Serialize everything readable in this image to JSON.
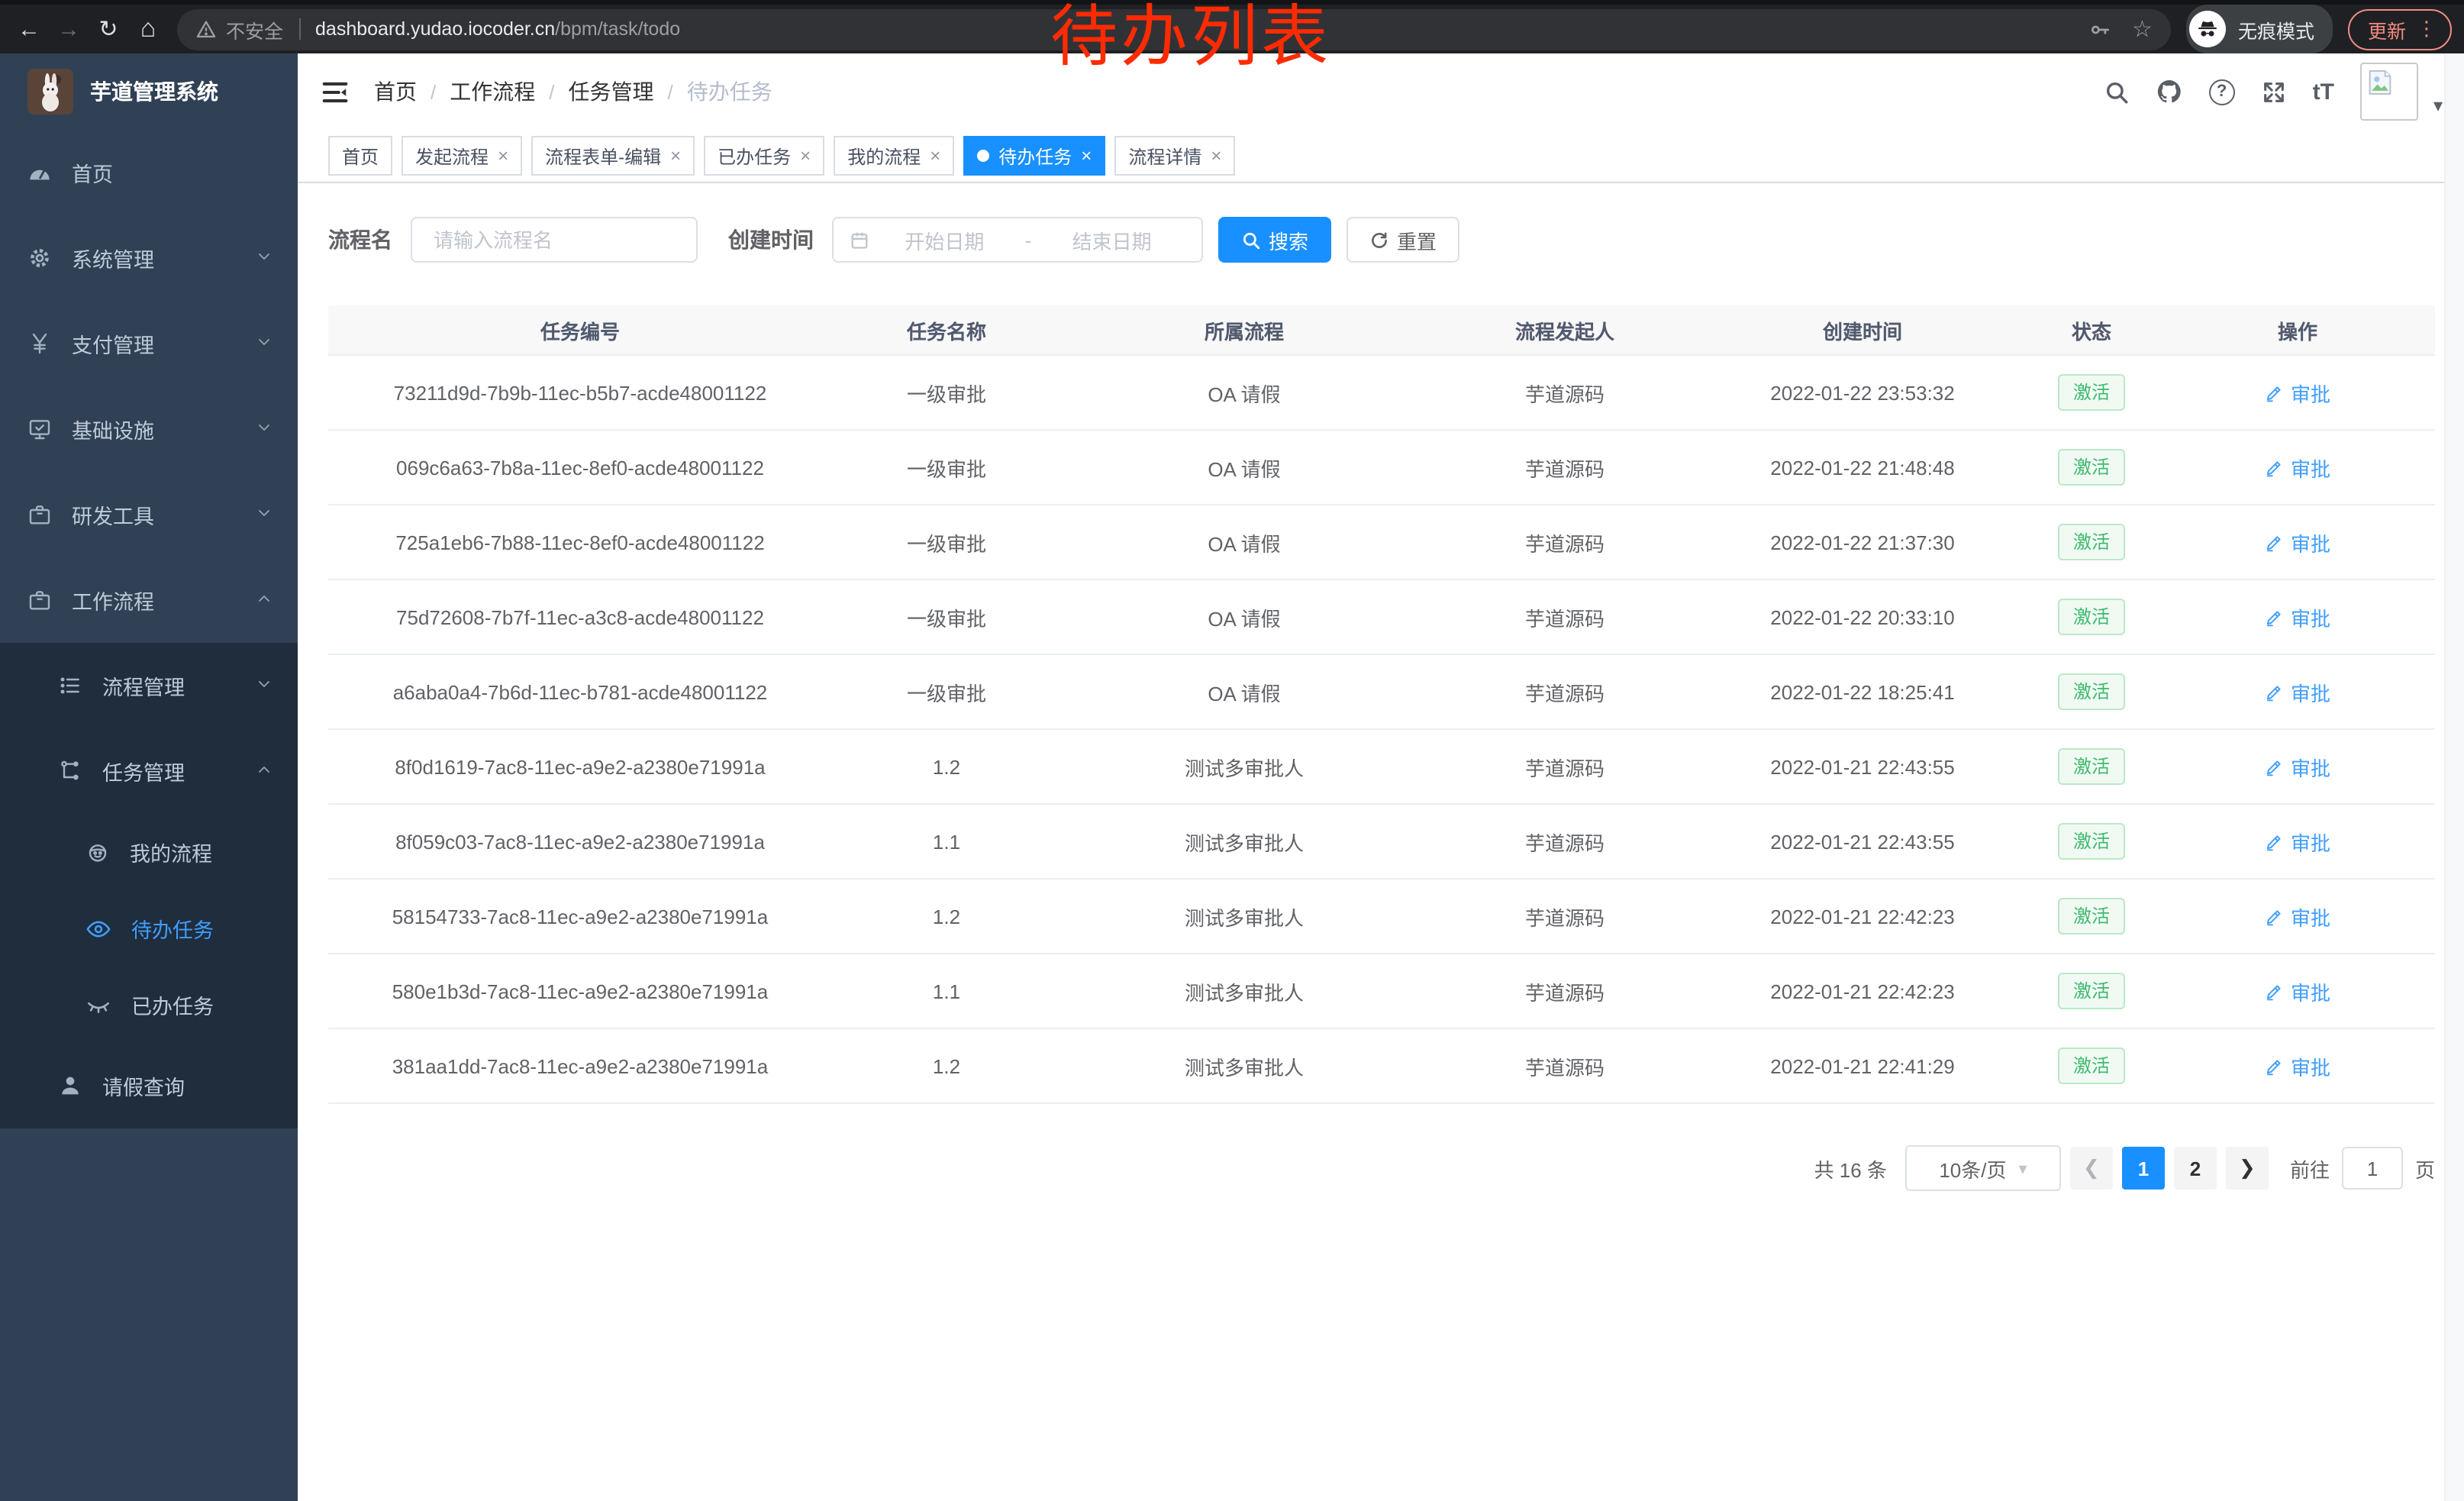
{
  "annotation": {
    "text": "待办列表",
    "color": "#fe2b01"
  },
  "browser": {
    "security_text": "不安全",
    "url_host": "dashboard.yudao.iocoder.cn",
    "url_path": "/bpm/task/todo",
    "incognito_label": "无痕模式",
    "update_label": "更新"
  },
  "sidebar": {
    "app_title": "芋道管理系统",
    "menu": [
      {
        "label": "首页",
        "icon": "dashboard-icon",
        "level": 1,
        "chevron": null,
        "active": false,
        "sub": false
      },
      {
        "label": "系统管理",
        "icon": "gear-icon",
        "level": 1,
        "chevron": "down",
        "active": false,
        "sub": false
      },
      {
        "label": "支付管理",
        "icon": "yen-icon",
        "level": 1,
        "chevron": "down",
        "active": false,
        "sub": false
      },
      {
        "label": "基础设施",
        "icon": "monitor-icon",
        "level": 1,
        "chevron": "down",
        "active": false,
        "sub": false
      },
      {
        "label": "研发工具",
        "icon": "briefcase-icon",
        "level": 1,
        "chevron": "down",
        "active": false,
        "sub": false
      },
      {
        "label": "工作流程",
        "icon": "briefcase-icon",
        "level": 1,
        "chevron": "up",
        "active": false,
        "sub": false
      },
      {
        "label": "流程管理",
        "icon": "list-icon",
        "level": 2,
        "chevron": "down",
        "active": false,
        "sub": true
      },
      {
        "label": "任务管理",
        "icon": "flow-icon",
        "level": 2,
        "chevron": "up",
        "active": false,
        "sub": true
      },
      {
        "label": "我的流程",
        "icon": "robot-icon",
        "level": 3,
        "chevron": null,
        "active": false,
        "sub": true
      },
      {
        "label": "待办任务",
        "icon": "eye-icon",
        "level": 3,
        "chevron": null,
        "active": true,
        "sub": true
      },
      {
        "label": "已办任务",
        "icon": "eye-closed-icon",
        "level": 3,
        "chevron": null,
        "active": false,
        "sub": true
      },
      {
        "label": "请假查询",
        "icon": "user-icon",
        "level": 2,
        "chevron": null,
        "active": false,
        "sub": true
      }
    ]
  },
  "header": {
    "breadcrumb": [
      "首页",
      "工作流程",
      "任务管理",
      "待办任务"
    ]
  },
  "tabs": [
    {
      "label": "首页",
      "closable": false,
      "active": false
    },
    {
      "label": "发起流程",
      "closable": true,
      "active": false
    },
    {
      "label": "流程表单-编辑",
      "closable": true,
      "active": false
    },
    {
      "label": "已办任务",
      "closable": true,
      "active": false
    },
    {
      "label": "我的流程",
      "closable": true,
      "active": false
    },
    {
      "label": "待办任务",
      "closable": true,
      "active": true
    },
    {
      "label": "流程详情",
      "closable": true,
      "active": false
    }
  ],
  "filters": {
    "name_label": "流程名",
    "name_placeholder": "请输入流程名",
    "time_label": "创建时间",
    "start_placeholder": "开始日期",
    "range_separator": "-",
    "end_placeholder": "结束日期",
    "search_label": "搜索",
    "reset_label": "重置"
  },
  "table": {
    "columns": [
      "任务编号",
      "任务名称",
      "所属流程",
      "流程发起人",
      "创建时间",
      "状态",
      "操作"
    ],
    "status_label": "激活",
    "action_label": "审批",
    "rows": [
      [
        "73211d9d-7b9b-11ec-b5b7-acde48001122",
        "一级审批",
        "OA 请假",
        "芋道源码",
        "2022-01-22 23:53:32"
      ],
      [
        "069c6a63-7b8a-11ec-8ef0-acde48001122",
        "一级审批",
        "OA 请假",
        "芋道源码",
        "2022-01-22 21:48:48"
      ],
      [
        "725a1eb6-7b88-11ec-8ef0-acde48001122",
        "一级审批",
        "OA 请假",
        "芋道源码",
        "2022-01-22 21:37:30"
      ],
      [
        "75d72608-7b7f-11ec-a3c8-acde48001122",
        "一级审批",
        "OA 请假",
        "芋道源码",
        "2022-01-22 20:33:10"
      ],
      [
        "a6aba0a4-7b6d-11ec-b781-acde48001122",
        "一级审批",
        "OA 请假",
        "芋道源码",
        "2022-01-22 18:25:41"
      ],
      [
        "8f0d1619-7ac8-11ec-a9e2-a2380e71991a",
        "1.2",
        "测试多审批人",
        "芋道源码",
        "2022-01-21 22:43:55"
      ],
      [
        "8f059c03-7ac8-11ec-a9e2-a2380e71991a",
        "1.1",
        "测试多审批人",
        "芋道源码",
        "2022-01-21 22:43:55"
      ],
      [
        "58154733-7ac8-11ec-a9e2-a2380e71991a",
        "1.2",
        "测试多审批人",
        "芋道源码",
        "2022-01-21 22:42:23"
      ],
      [
        "580e1b3d-7ac8-11ec-a9e2-a2380e71991a",
        "1.1",
        "测试多审批人",
        "芋道源码",
        "2022-01-21 22:42:23"
      ],
      [
        "381aa1dd-7ac8-11ec-a9e2-a2380e71991a",
        "1.2",
        "测试多审批人",
        "芋道源码",
        "2022-01-21 22:41:29"
      ]
    ]
  },
  "pagination": {
    "total": "共 16 条",
    "page_size": "10条/页",
    "pages": [
      "1",
      "2"
    ],
    "active_index": 0,
    "goto_label": "前往",
    "goto_value": "1",
    "goto_suffix": "页"
  },
  "colors": {
    "primary": "#1890ff",
    "link": "#409eff",
    "success": "#3db96f",
    "sidebar_bg": "#304156",
    "submenu_bg": "#1f2d3d"
  }
}
